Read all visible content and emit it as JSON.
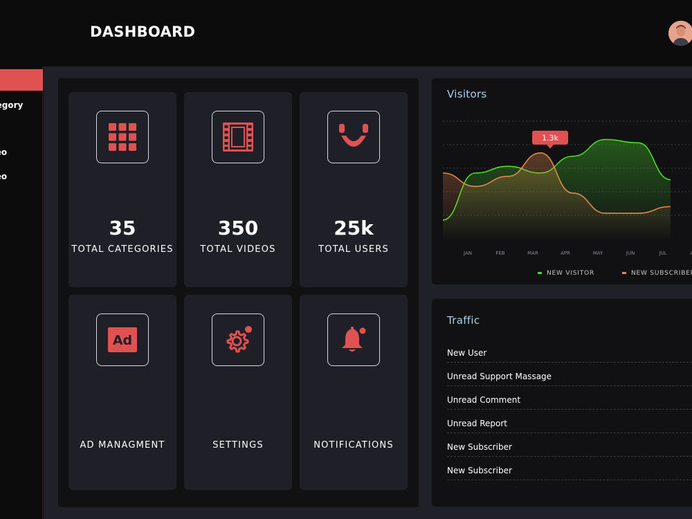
{
  "header": {
    "title": "DASHBOARD"
  },
  "sidebar": {
    "items": [
      {
        "label": "Category"
      },
      {
        "label": "Video"
      },
      {
        "label": "Video"
      }
    ]
  },
  "cards": [
    {
      "value": "35",
      "label": "TOTAL CATEGORIES",
      "icon": "grid-icon"
    },
    {
      "value": "350",
      "label": "TOTAL VIDEOS",
      "icon": "film-icon"
    },
    {
      "value": "25k",
      "label": "TOTAL USERS",
      "icon": "smile-icon"
    },
    {
      "value": "",
      "label": "AD MANAGMENT",
      "icon": "ad-icon"
    },
    {
      "value": "",
      "label": "SETTINGS",
      "icon": "gear-icon"
    },
    {
      "value": "",
      "label": "NOTIFICATIONS",
      "icon": "bell-icon"
    }
  ],
  "colors": {
    "accent": "#e05252",
    "visitor": "#4ddc2a",
    "subscriber": "#e5894a",
    "panel": "#111114",
    "card": "#1f1f27"
  },
  "visitors": {
    "title": "Visitors",
    "tooltip": "1.3k",
    "legend": {
      "new_visitor": "NEW VISITOR",
      "new_subscriber": "NEW SUBSCRIBER"
    }
  },
  "chart_data": {
    "type": "area",
    "title": "Visitors",
    "categories": [
      "JAN",
      "FEB",
      "MAR",
      "APR",
      "MAY",
      "JUN",
      "JUL",
      "AUG"
    ],
    "series": [
      {
        "name": "NEW VISITOR",
        "values": [
          0.3,
          1.0,
          1.1,
          1.0,
          1.25,
          1.5,
          1.45,
          0.9
        ]
      },
      {
        "name": "NEW SUBSCRIBER",
        "values": [
          1.0,
          0.8,
          0.95,
          1.3,
          0.7,
          0.4,
          0.4,
          0.5
        ]
      }
    ],
    "annotations": [
      {
        "category": "APR",
        "label": "1.3k"
      }
    ],
    "ylim": [
      0,
      2
    ],
    "grid": true,
    "legend": "bottom"
  },
  "traffic": {
    "title": "Traffic",
    "rows": [
      {
        "label": "New User"
      },
      {
        "label": "Unread Support Massage"
      },
      {
        "label": "Unread Comment"
      },
      {
        "label": "Unread Report"
      },
      {
        "label": "New Subscriber"
      },
      {
        "label": "New Subscriber"
      }
    ]
  }
}
